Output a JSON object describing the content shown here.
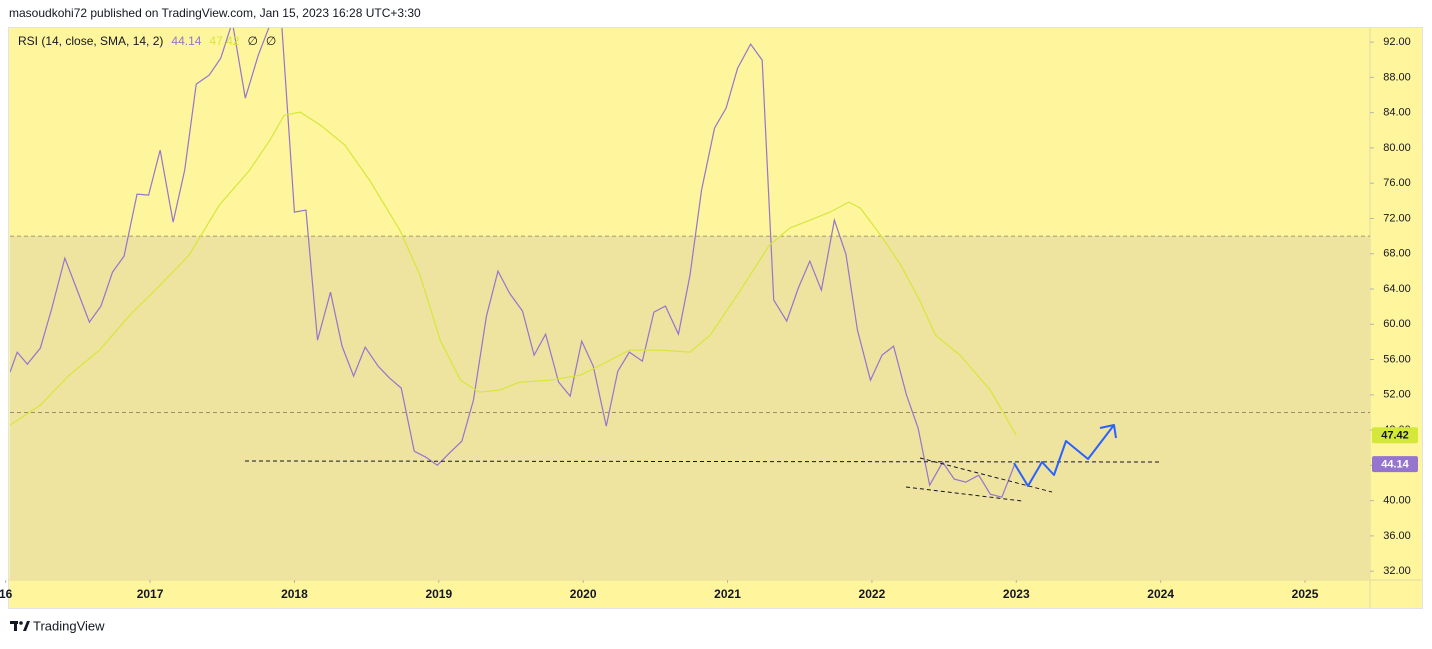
{
  "publisher_line": "masoudkohi72 published on TradingView.com, Jan 15, 2023 16:28 UTC+3:30",
  "footer_brand": "TradingView",
  "chart_data": {
    "type": "line",
    "indicator": "RSI (14, close, SMA, 14, 2)",
    "legend_extra": [
      "∅",
      "∅"
    ],
    "xlim": [
      2016.03,
      2025.45
    ],
    "xticks": [
      {
        "value": 2016,
        "label": "16"
      },
      2017,
      2018,
      2019,
      2020,
      2021,
      2022,
      2023,
      2024,
      2025
    ],
    "ylim": [
      31,
      93.6
    ],
    "yticks": [
      {
        "value": 32,
        "label": "32.00"
      },
      {
        "value": 36,
        "label": "36.00"
      },
      {
        "value": 40,
        "label": "40.00"
      },
      {
        "value": 44,
        "label": "44.00"
      },
      {
        "value": 48,
        "label": "48.00"
      },
      {
        "value": 52,
        "label": "52.00"
      },
      {
        "value": 56,
        "label": "56.00"
      },
      {
        "value": 60,
        "label": "60.00"
      },
      {
        "value": 64,
        "label": "64.00"
      },
      {
        "value": 68,
        "label": "68.00"
      },
      {
        "value": 72,
        "label": "72.00"
      },
      {
        "value": 76,
        "label": "76.00"
      },
      {
        "value": 80,
        "label": "80.00"
      },
      {
        "value": 84,
        "label": "84.00"
      },
      {
        "value": 88,
        "label": "88.00"
      },
      {
        "value": 92,
        "label": "92.00"
      }
    ],
    "grid": false,
    "levels": [
      70,
      50
    ],
    "band": [
      30,
      70
    ],
    "series": [
      {
        "color": "#9575cd",
        "x": [
          2016.03,
          2016.08,
          2016.15,
          2016.24,
          2016.32,
          2016.41,
          2016.49,
          2016.58,
          2016.66,
          2016.74,
          2016.82,
          2016.91,
          2016.99,
          2017.07,
          2017.16,
          2017.24,
          2017.32,
          2017.41,
          2017.49,
          2017.57,
          2017.66,
          2017.75,
          2017.83,
          2017.91,
          2018.0,
          2018.08,
          2018.16,
          2018.25,
          2018.33,
          2018.41,
          2018.49,
          2018.58,
          2018.66,
          2018.74,
          2018.83,
          2018.91,
          2018.99,
          2019.08,
          2019.16,
          2019.24,
          2019.33,
          2019.41,
          2019.49,
          2019.58,
          2019.66,
          2019.74,
          2019.83,
          2019.91,
          2019.99,
          2020.07,
          2020.16,
          2020.24,
          2020.32,
          2020.41,
          2020.49,
          2020.57,
          2020.66,
          2020.74,
          2020.82,
          2020.91,
          2020.99,
          2021.07,
          2021.16,
          2021.24,
          2021.32,
          2021.41,
          2021.49,
          2021.57,
          2021.65,
          2021.74,
          2021.82,
          2021.9,
          2021.99,
          2022.07,
          2022.15,
          2022.24,
          2022.32,
          2022.4,
          2022.49,
          2022.57,
          2022.65,
          2022.74,
          2022.82,
          2022.9,
          2022.99
        ],
        "values": [
          54.57,
          56.84,
          55.48,
          57.29,
          61.83,
          67.5,
          64.1,
          60.24,
          62.06,
          65.91,
          67.73,
          74.76,
          74.65,
          79.75,
          71.58,
          77.48,
          87.24,
          88.26,
          90.19,
          94.27,
          85.65,
          90.53,
          93.93,
          94.5,
          72.72,
          72.95,
          58.2,
          63.64,
          57.52,
          54.12,
          57.41,
          55.25,
          53.89,
          52.76,
          45.61,
          44.93,
          44.02,
          45.5,
          46.75,
          51.4,
          60.92,
          66.03,
          63.53,
          61.49,
          56.5,
          58.88,
          53.44,
          51.85,
          58.09,
          55.25,
          48.45,
          54.68,
          56.84,
          55.82,
          61.38,
          62.06,
          58.88,
          65.57,
          75.21,
          82.25,
          84.51,
          89.05,
          91.77,
          89.96,
          62.74,
          60.36,
          64.1,
          67.16,
          63.87,
          71.81,
          67.95,
          59.33,
          53.66,
          56.5,
          57.52,
          51.96,
          48.22,
          41.75,
          44.36,
          42.44,
          42.1,
          42.89,
          40.73,
          40.39,
          44.14
        ]
      },
      {
        "color": "#d4e83a",
        "x": [
          2016.03,
          2016.24,
          2016.44,
          2016.65,
          2016.86,
          2017.07,
          2017.27,
          2017.48,
          2017.69,
          2017.83,
          2017.93,
          2018.04,
          2018.18,
          2018.35,
          2018.52,
          2018.73,
          2018.87,
          2019.01,
          2019.15,
          2019.28,
          2019.42,
          2019.56,
          2019.77,
          2019.98,
          2020.12,
          2020.32,
          2020.53,
          2020.74,
          2020.88,
          2021.09,
          2021.29,
          2021.43,
          2021.57,
          2021.71,
          2021.84,
          2021.92,
          2022.06,
          2022.2,
          2022.33,
          2022.44,
          2022.61,
          2022.82,
          2023.0
        ],
        "values": [
          48.56,
          50.83,
          54.23,
          57.07,
          61.04,
          64.44,
          67.84,
          73.51,
          77.48,
          80.88,
          83.72,
          84.06,
          82.59,
          80.32,
          76.35,
          70.68,
          65.57,
          58.2,
          53.66,
          52.3,
          52.53,
          53.44,
          53.66,
          54.23,
          55.37,
          57.07,
          57.07,
          56.84,
          58.77,
          63.87,
          68.98,
          70.9,
          71.81,
          72.72,
          73.85,
          73.17,
          70.11,
          66.71,
          62.74,
          58.77,
          56.5,
          52.53,
          47.42
        ]
      }
    ]
  }
}
